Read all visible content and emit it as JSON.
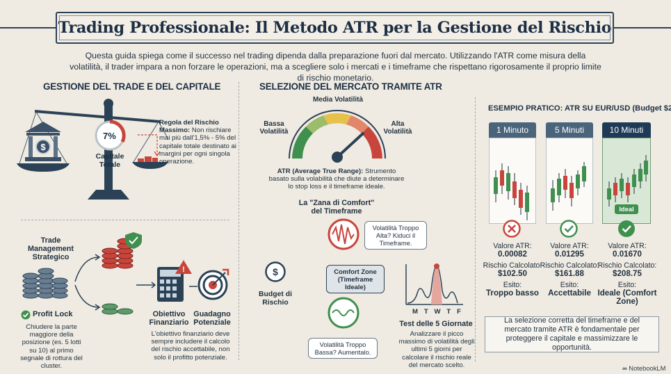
{
  "title": "Trading Professionale: Il Metodo ATR per la Gestione del Rischio",
  "intro": "Questa guida spiega come il successo nel trading dipenda dalla preparazione fuori dal mercato. Utilizzando l'ATR come misura della volatilità, il trader impara a non forzare le operazioni, ma a scegliere solo i mercati e i timeframe che rispettano rigorosamente il proprio limite di rischio monetario.",
  "left": {
    "heading": "GESTIONE DEL TRADE E DEL CAPITALE",
    "pie_value": "7%",
    "capital_label": "Capitale Totale",
    "rule_title": "Regola del Rischio Massimo:",
    "rule_text": "Non rischiare mai più dall'1,5% - 5% del capitale totale destinato ai margini per ogni singola operazione.",
    "strategy_label": "Trade Management Strategico",
    "profit_lock_title": "Profit Lock",
    "profit_lock_text": "Chiudere la parte maggiore della posizione (es. 5 lotti su 10) al primo segnale di rottura del cluster.",
    "objective_label": "Obiettivo Finanziario",
    "gain_label": "Guadagno Potenziale",
    "objective_text": "L'obiettivo finanziario deve sempre includere il calcolo del rischio accettabile, non solo il profitto potenziale."
  },
  "middle": {
    "heading": "SELEZIONE DEL MERCATO TRAMITE ATR",
    "gauge_mid": "Media Volatilità",
    "gauge_low": "Bassa Volatilità",
    "gauge_high": "Alta Volatilità",
    "atr_def_title": "ATR (Average True Range):",
    "atr_def_text": "Strumento basato sulla volabilità che diute a determinare lo stop loss e il timeframe ideale.",
    "comfort_title": "La \"Zana di Comfort\" del Timeframe",
    "high_bubble": "Volatilità Troppo Alta? Kiduci il Timeframe.",
    "comfort_zone": "Comfort Zone (Timeframe Ideale)",
    "low_bubble": "Volatilità Troppo Bassa? Aumentalo.",
    "budget_label": "Budget di Rischio",
    "test_days": [
      "M",
      "T",
      "W",
      "T",
      "F"
    ],
    "test_title": "Test delle 5 Giornate",
    "test_text": "Analizzare il picco massimo di volatilità degli ultimi 5 giorni per calcolare il rischio reale del mercato scelto."
  },
  "right": {
    "heading": "ESEMPIO PRATICO: ATR SU EUR/USD (Budget $200)",
    "columns": [
      {
        "label": "1 Minuto",
        "atr_label": "Valore ATR:",
        "atr": "0.00082",
        "risk_label": "Rischio Calcolato:",
        "risk": "$102.50",
        "outcome_label": "Esito:",
        "outcome": "Troppo basso",
        "status": "bad",
        "color": "#4a647b"
      },
      {
        "label": "5 Minuti",
        "atr_label": "Valore ATR:",
        "atr": "0.01295",
        "risk_label": "Rischio Calcolato:",
        "risk": "$161.88",
        "outcome_label": "Esito:",
        "outcome": "Accettabile",
        "status": "ok",
        "color": "#4a647b"
      },
      {
        "label": "10 Minuti",
        "atr_label": "Valore ATR:",
        "atr": "0.01670",
        "risk_label": "Rischio Calcolato:",
        "risk": "$208.75",
        "outcome_label": "Esito:",
        "outcome": "Ideale (Comfort Zone)",
        "status": "ideal",
        "color": "#1e3a57"
      }
    ],
    "ideal_badge": "Ideal",
    "conclusion": "La selezione corretta del timeframe e del mercato tramite ATR è fondamentale per proteggere il capitale e massimizzare le opportunità."
  },
  "footer": "NotebookLM",
  "colors": {
    "navy": "#1d2f44",
    "red": "#c8453c",
    "green": "#3f8f4e",
    "yellow": "#e7c14a"
  }
}
